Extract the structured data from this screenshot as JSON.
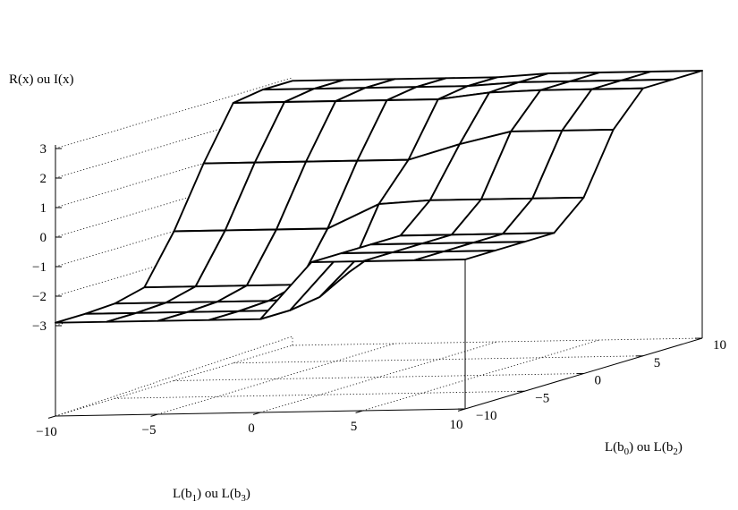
{
  "chart_data": {
    "type": "surface",
    "zlabel": "R(x) ou I(x)",
    "xlabel_main": "L(b",
    "xlabel_sub1": "1",
    "xlabel_mid": ") ou L(b",
    "xlabel_sub2": "3",
    "xlabel_end": ")",
    "ylabel_main": "L(b",
    "ylabel_sub1": "0",
    "ylabel_mid": ") ou L(b",
    "ylabel_sub2": "2",
    "ylabel_end": ")",
    "x_ticks": [
      "−10",
      "−5",
      "0",
      "5",
      "10"
    ],
    "y_ticks": [
      "−10",
      "−5",
      "0",
      "5",
      "10"
    ],
    "z_ticks": [
      "−3",
      "−2",
      "−1",
      "0",
      "1",
      "2",
      "3"
    ],
    "x_range": [
      -10,
      10
    ],
    "y_range": [
      -10,
      10
    ],
    "z_range": [
      -3,
      3
    ],
    "grid": "dotted",
    "grid_x": [
      -10,
      -7.5,
      -5,
      -2.5,
      0,
      2.5,
      5,
      7.5,
      10
    ],
    "grid_y": [
      -10,
      -7.5,
      -5,
      -2.5,
      0,
      2.5,
      5,
      7.5,
      10
    ],
    "z_values": [
      [
        -2.9,
        -2.9,
        -2.85,
        -2.6,
        -1.0,
        1.0,
        2.75,
        2.9,
        2.9
      ],
      [
        -2.9,
        -2.9,
        -2.85,
        -2.6,
        -1.0,
        1.0,
        2.75,
        2.9,
        2.9
      ],
      [
        -2.9,
        -2.9,
        -2.85,
        -2.6,
        -1.0,
        1.0,
        2.75,
        2.9,
        2.9
      ],
      [
        -2.9,
        -2.9,
        -2.85,
        -2.6,
        -1.0,
        1.0,
        2.75,
        2.9,
        2.9
      ],
      [
        -2.9,
        -2.9,
        -2.75,
        -2.2,
        -0.2,
        1.0,
        2.75,
        2.9,
        2.9
      ],
      [
        -1.0,
        -1.0,
        -1.0,
        -1.0,
        -0.1,
        1.5,
        2.95,
        3.0,
        3.0
      ],
      [
        -1.0,
        -1.0,
        -1.0,
        -1.0,
        -0.1,
        1.9,
        3.0,
        3.0,
        3.0
      ],
      [
        -1.0,
        -1.0,
        -1.0,
        -1.0,
        -0.1,
        1.9,
        3.0,
        3.0,
        3.0
      ],
      [
        -1.0,
        -1.0,
        -1.0,
        -1.0,
        -0.1,
        1.9,
        3.0,
        3.0,
        3.0
      ]
    ]
  }
}
